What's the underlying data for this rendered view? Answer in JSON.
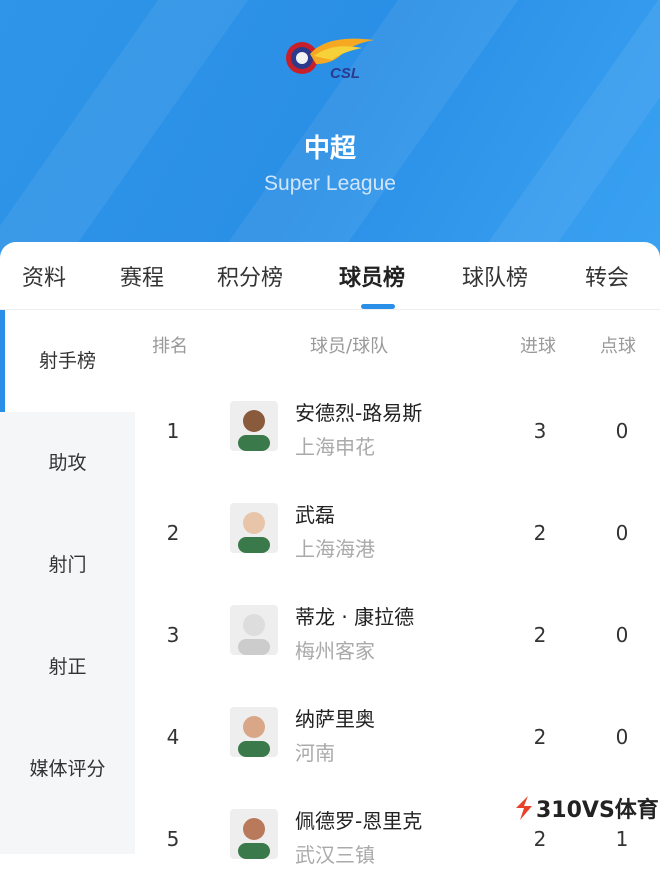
{
  "header": {
    "logo_text": "CSL",
    "title": "中超",
    "subtitle": "Super League"
  },
  "tabs": [
    {
      "label": "资料"
    },
    {
      "label": "赛程"
    },
    {
      "label": "积分榜"
    },
    {
      "label": "球员榜",
      "active": true
    },
    {
      "label": "球队榜"
    },
    {
      "label": "转会"
    }
  ],
  "sidebar": [
    {
      "label": "射手榜",
      "active": true
    },
    {
      "label": "助攻"
    },
    {
      "label": "射门"
    },
    {
      "label": "射正"
    },
    {
      "label": "媒体评分"
    }
  ],
  "columns": {
    "rank": "排名",
    "player": "球员/球队",
    "goals": "进球",
    "penalties": "点球"
  },
  "rows": [
    {
      "rank": "1",
      "name": "安德烈-路易斯",
      "team": "上海申花",
      "goals": "3",
      "penalties": "0"
    },
    {
      "rank": "2",
      "name": "武磊",
      "team": "上海海港",
      "goals": "2",
      "penalties": "0"
    },
    {
      "rank": "3",
      "name": "蒂龙 · 康拉德",
      "team": "梅州客家",
      "goals": "2",
      "penalties": "0"
    },
    {
      "rank": "4",
      "name": "纳萨里奥",
      "team": "河南",
      "goals": "2",
      "penalties": "0"
    },
    {
      "rank": "5",
      "name": "佩德罗-恩里克",
      "team": "武汉三镇",
      "goals": "2",
      "penalties": "1"
    }
  ],
  "watermark": "310VS体育",
  "colors": {
    "accent": "#2a8fe6"
  }
}
